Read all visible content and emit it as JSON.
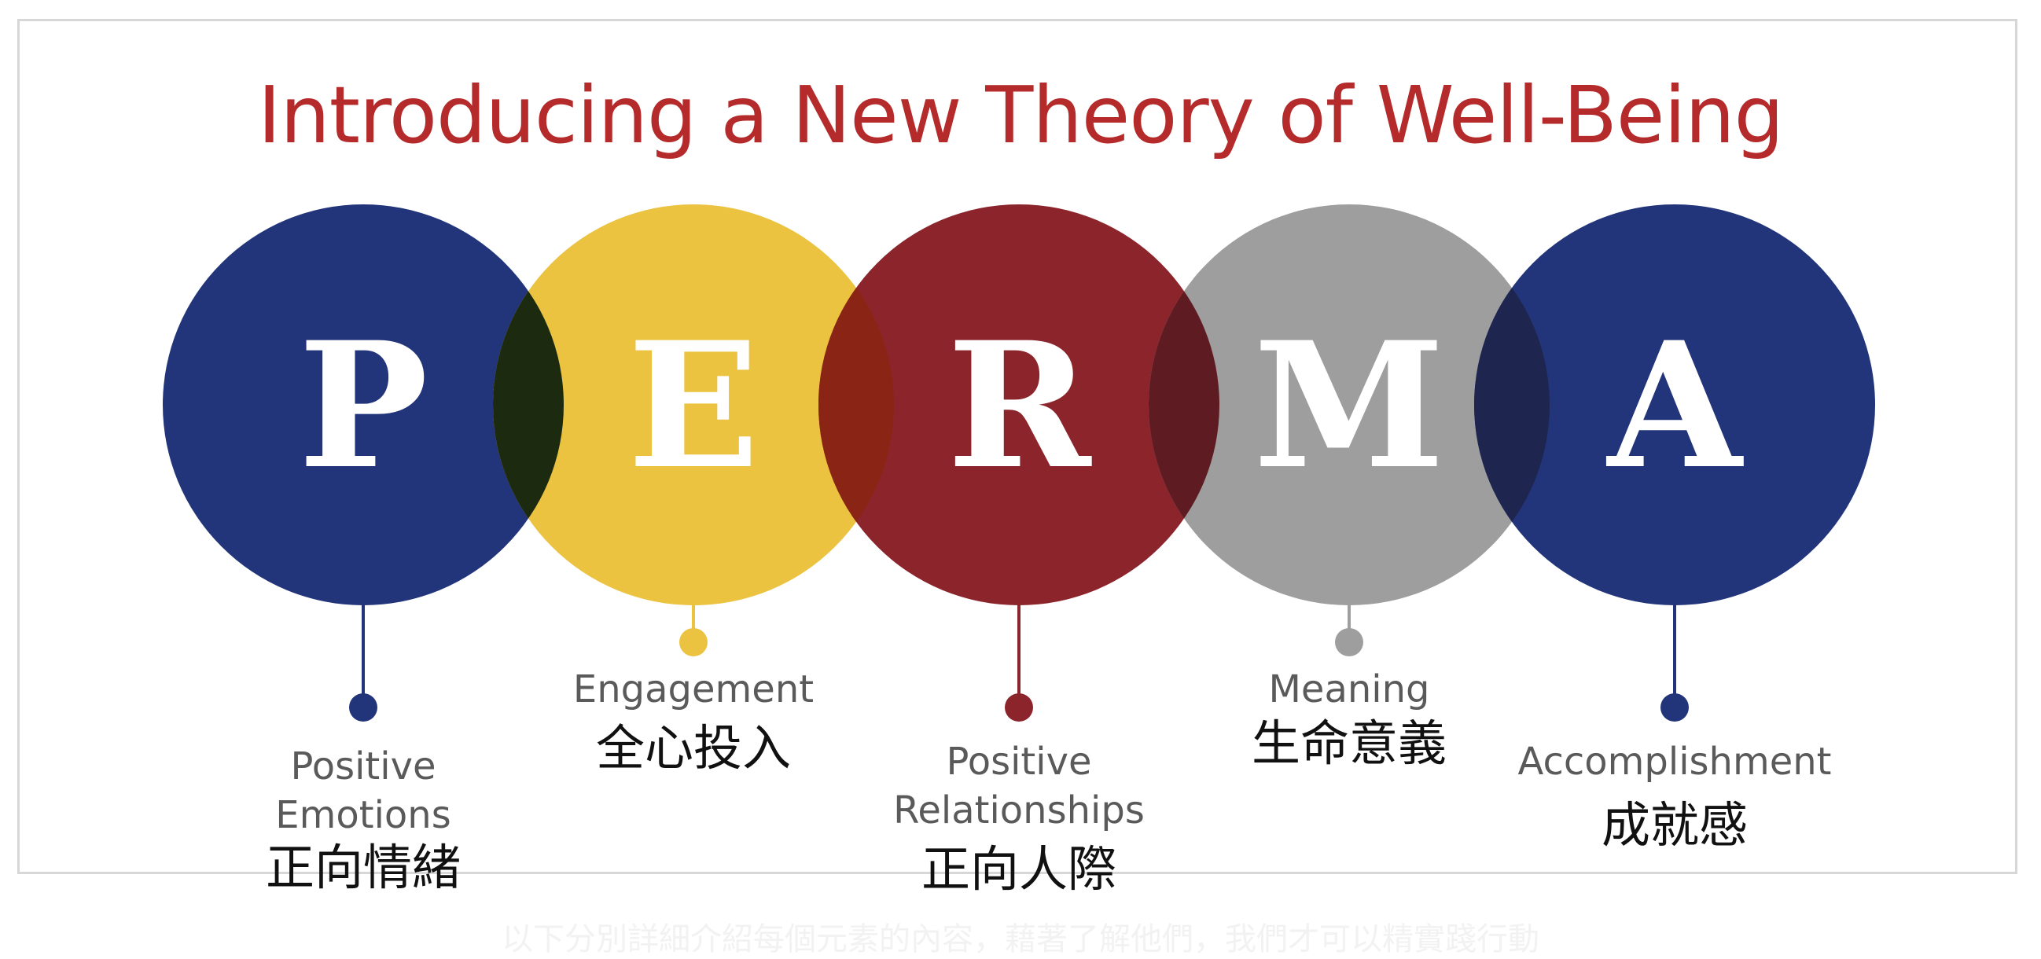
{
  "title": "Introducing a New Theory of Well-Being",
  "elements": [
    {
      "letter": "P",
      "label": "Positive Emotions",
      "label_lines": [
        "Positive",
        "Emotions"
      ],
      "chinese": "正向情緒",
      "color": "#22347a"
    },
    {
      "letter": "E",
      "label": "Engagement",
      "label_lines": [
        "Engagement"
      ],
      "chinese": "全心投入",
      "color": "#ebc340"
    },
    {
      "letter": "R",
      "label": "Positive Relationships",
      "label_lines": [
        "Positive",
        "Relationships"
      ],
      "chinese": "正向人際",
      "color": "#8c242c"
    },
    {
      "letter": "M",
      "label": "Meaning",
      "label_lines": [
        "Meaning"
      ],
      "chinese": "生命意義",
      "color": "#9e9e9e"
    },
    {
      "letter": "A",
      "label": "Accomplishment",
      "label_lines": [
        "Accomplishment"
      ],
      "chinese": "成就感",
      "color": "#22347a"
    }
  ],
  "overlap_colors": [
    "#1c2a10",
    "#8a2414",
    "#5e1c22",
    "#1e2650"
  ],
  "caption": "以下分別詳細介紹每個元素的內容，藉著了解他們，我們才可以精實踐行動"
}
